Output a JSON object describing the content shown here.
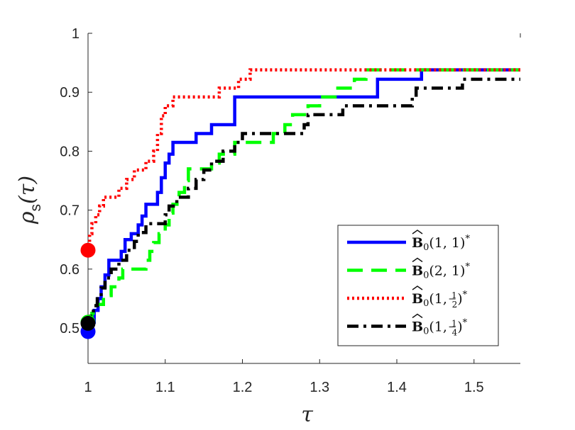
{
  "chart_data": {
    "type": "line",
    "title": "",
    "xlabel": "τ",
    "ylabel": "ρ",
    "ylabel_subscript": "s",
    "ylabel_suffix": "(τ)",
    "xlim": [
      1,
      1.56
    ],
    "ylim": [
      0.44,
      1.0
    ],
    "xticks": [
      "1",
      "1.1",
      "1.2",
      "1.3",
      "1.4",
      "1.5"
    ],
    "xtick_values": [
      1,
      1.1,
      1.2,
      1.3,
      1.4,
      1.5
    ],
    "yticks": [
      "0.5",
      "0.6",
      "0.7",
      "0.8",
      "0.9",
      "1"
    ],
    "ytick_values": [
      0.5,
      0.6,
      0.7,
      0.8,
      0.9,
      1.0
    ],
    "grid": false,
    "legend_position": "bottom-right",
    "series": [
      {
        "name": "B̂0(1,1)*",
        "color": "#0000ff",
        "style": "solid",
        "start": [
          1.0,
          0.494
        ],
        "points": [
          [
            1.0,
            0.494
          ],
          [
            1.002,
            0.51
          ],
          [
            1.008,
            0.53
          ],
          [
            1.013,
            0.55
          ],
          [
            1.017,
            0.57
          ],
          [
            1.022,
            0.59
          ],
          [
            1.027,
            0.615
          ],
          [
            1.043,
            0.63
          ],
          [
            1.048,
            0.65
          ],
          [
            1.056,
            0.66
          ],
          [
            1.065,
            0.675
          ],
          [
            1.07,
            0.69
          ],
          [
            1.075,
            0.71
          ],
          [
            1.09,
            0.73
          ],
          [
            1.095,
            0.755
          ],
          [
            1.1,
            0.78
          ],
          [
            1.105,
            0.795
          ],
          [
            1.11,
            0.815
          ],
          [
            1.14,
            0.83
          ],
          [
            1.16,
            0.845
          ],
          [
            1.19,
            0.892
          ],
          [
            1.375,
            0.922
          ],
          [
            1.432,
            0.938
          ],
          [
            1.56,
            0.938
          ]
        ]
      },
      {
        "name": "B̂0(2,1)*",
        "color": "#00ff00",
        "style": "dashed",
        "start": [
          1.0,
          0.51
        ],
        "points": [
          [
            1.0,
            0.51
          ],
          [
            1.005,
            0.525
          ],
          [
            1.012,
            0.54
          ],
          [
            1.02,
            0.555
          ],
          [
            1.03,
            0.57
          ],
          [
            1.04,
            0.585
          ],
          [
            1.045,
            0.6
          ],
          [
            1.075,
            0.615
          ],
          [
            1.08,
            0.63
          ],
          [
            1.085,
            0.645
          ],
          [
            1.092,
            0.66
          ],
          [
            1.1,
            0.675
          ],
          [
            1.105,
            0.695
          ],
          [
            1.11,
            0.71
          ],
          [
            1.118,
            0.73
          ],
          [
            1.125,
            0.75
          ],
          [
            1.13,
            0.77
          ],
          [
            1.16,
            0.78
          ],
          [
            1.17,
            0.795
          ],
          [
            1.19,
            0.815
          ],
          [
            1.24,
            0.83
          ],
          [
            1.255,
            0.845
          ],
          [
            1.265,
            0.862
          ],
          [
            1.285,
            0.877
          ],
          [
            1.3,
            0.892
          ],
          [
            1.32,
            0.907
          ],
          [
            1.345,
            0.922
          ],
          [
            1.36,
            0.938
          ],
          [
            1.56,
            0.938
          ]
        ]
      },
      {
        "name": "B̂0(1,½)*",
        "color": "#ff0000",
        "style": "dotted",
        "start": [
          1.0,
          0.632
        ],
        "points": [
          [
            1.0,
            0.632
          ],
          [
            1.002,
            0.66
          ],
          [
            1.005,
            0.677
          ],
          [
            1.01,
            0.692
          ],
          [
            1.015,
            0.707
          ],
          [
            1.02,
            0.722
          ],
          [
            1.04,
            0.737
          ],
          [
            1.05,
            0.752
          ],
          [
            1.06,
            0.768
          ],
          [
            1.075,
            0.783
          ],
          [
            1.085,
            0.8
          ],
          [
            1.09,
            0.83
          ],
          [
            1.095,
            0.86
          ],
          [
            1.1,
            0.877
          ],
          [
            1.11,
            0.892
          ],
          [
            1.17,
            0.907
          ],
          [
            1.195,
            0.922
          ],
          [
            1.21,
            0.938
          ],
          [
            1.56,
            0.938
          ]
        ]
      },
      {
        "name": "B̂0(1,¼)*",
        "color": "#000000",
        "style": "dashdot",
        "start": [
          1.0,
          0.508
        ],
        "points": [
          [
            1.0,
            0.508
          ],
          [
            1.003,
            0.52
          ],
          [
            1.007,
            0.538
          ],
          [
            1.012,
            0.553
          ],
          [
            1.017,
            0.568
          ],
          [
            1.022,
            0.585
          ],
          [
            1.03,
            0.6
          ],
          [
            1.04,
            0.615
          ],
          [
            1.05,
            0.632
          ],
          [
            1.06,
            0.647
          ],
          [
            1.065,
            0.662
          ],
          [
            1.075,
            0.677
          ],
          [
            1.1,
            0.692
          ],
          [
            1.105,
            0.707
          ],
          [
            1.115,
            0.722
          ],
          [
            1.13,
            0.737
          ],
          [
            1.14,
            0.752
          ],
          [
            1.15,
            0.768
          ],
          [
            1.16,
            0.783
          ],
          [
            1.175,
            0.8
          ],
          [
            1.19,
            0.815
          ],
          [
            1.2,
            0.83
          ],
          [
            1.28,
            0.845
          ],
          [
            1.285,
            0.862
          ],
          [
            1.33,
            0.877
          ],
          [
            1.35,
            0.877
          ],
          [
            1.42,
            0.892
          ],
          [
            1.425,
            0.907
          ],
          [
            1.485,
            0.922
          ],
          [
            1.56,
            0.922
          ]
        ]
      }
    ],
    "legend": [
      {
        "math": "B",
        "sub": "0",
        "args": "(1, 1)",
        "frac": null,
        "star": "*",
        "color": "#0000ff",
        "style": "solid"
      },
      {
        "math": "B",
        "sub": "0",
        "args": "(2, 1)",
        "frac": null,
        "star": "*",
        "color": "#00ff00",
        "style": "dashed"
      },
      {
        "math": "B",
        "sub": "0",
        "args": "(1, ",
        "frac": [
          "1",
          "2"
        ],
        "star": "*",
        "color": "#ff0000",
        "style": "dotted"
      },
      {
        "math": "B",
        "sub": "0",
        "args": "(1, ",
        "frac": [
          "1",
          "4"
        ],
        "star": "*",
        "color": "#000000",
        "style": "dashdot"
      }
    ]
  }
}
